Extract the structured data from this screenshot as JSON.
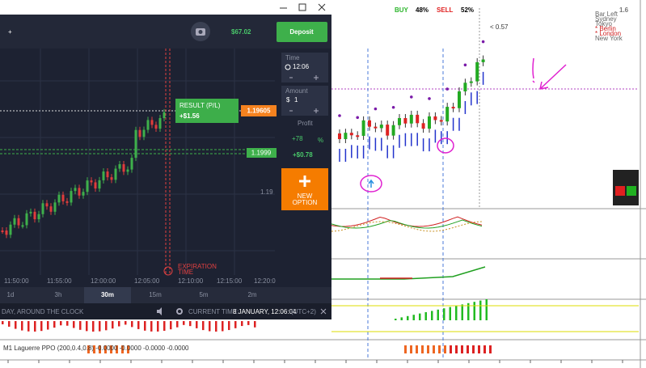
{
  "app": {
    "add": "+",
    "balance": "$67.02",
    "deposit": "Deposit",
    "time_label": "Time",
    "time": "12:06",
    "amount_label": "Amount",
    "currency": "$",
    "amount": "1",
    "profit_label": "Profit",
    "profit_pct": "+78",
    "pct_sign": "%",
    "profit": "+$0.78",
    "new_option": [
      "NEW",
      "OPTION"
    ],
    "result_title": "RESULT (P/L)",
    "result": "+$1.56",
    "price_current": "1.19605",
    "price_tag": "1.1999",
    "price_level": "1.19",
    "time_axis": [
      "11:50:00",
      "11:55:00",
      "12:00:00",
      "12:05:00",
      "12:10:00",
      "12:15:00",
      "12:20:0"
    ],
    "periods": [
      "1d",
      "3h",
      "30m",
      "15m",
      "5m",
      "2m"
    ],
    "expiration": [
      "EXPIRATION",
      "TIME"
    ],
    "footer": {
      "schedule": "DAY, AROUND THE CLOCK",
      "current_time_label": "CURRENT TIME:",
      "current_time": "8 JANUARY, 12:06:04",
      "tz": "(UTC+2)"
    }
  },
  "mt4": {
    "buy": "BUY",
    "buy_pct": "48%",
    "sell": "SELL",
    "sell_pct": "52%",
    "price": "1.6",
    "ratio": "< 0.57",
    "sessions": [
      "Bar Left",
      "Sydney",
      "Tokyo",
      "* Berlin",
      "* London",
      "New York"
    ],
    "ppo_label": "M1 Laguerre PPO (200,0.4,0.8) -0.0000 -0.0000 -0.0000 -0.0000"
  }
}
